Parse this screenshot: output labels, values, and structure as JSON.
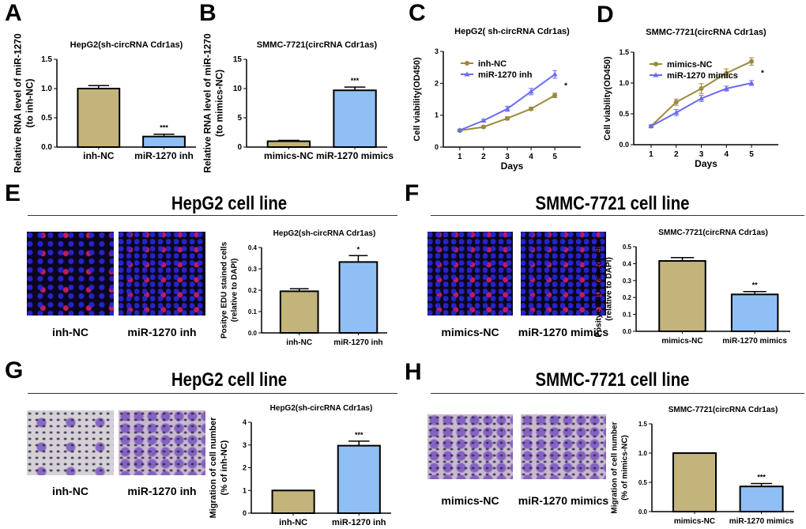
{
  "panels": {
    "A": "A",
    "B": "B",
    "C": "C",
    "D": "D",
    "E": "E",
    "F": "F",
    "G": "G",
    "H": "H"
  },
  "sections": {
    "E": "HepG2 cell line",
    "F": "SMMC-7721 cell line",
    "G": "HepG2 cell line",
    "H": "SMMC-7721 cell line"
  },
  "images": {
    "E": [
      "inh-NC",
      "miR-1270 inh"
    ],
    "F": [
      "mimics-NC",
      "miR-1270 mimics"
    ],
    "G": [
      "inh-NC",
      "miR-1270 inh"
    ],
    "H": [
      "mimics-NC",
      "miR-1270 mimics"
    ]
  },
  "colors": {
    "control": "#c2b47a",
    "treated": "#8fbff5",
    "line_control": "#9b8a3c",
    "line_treated": "#6b6cf5"
  },
  "chart_data": [
    {
      "id": "A",
      "type": "bar",
      "title": "HepG2(sh-circRNA Cdr1as)",
      "ylabel": [
        "Relative RNA level of miR-1270",
        "(to inh-NC)"
      ],
      "categories": [
        "inh-NC",
        "miR-1270 inh"
      ],
      "values": [
        1.0,
        0.18
      ],
      "errors": [
        0.05,
        0.04
      ],
      "significance": [
        "",
        "***"
      ],
      "ylim": [
        0,
        1.5
      ],
      "yticks": [
        0,
        0.5,
        1.0,
        1.5
      ],
      "yticklabels": [
        "0.0",
        "0.5",
        "1.0",
        "1.5"
      ]
    },
    {
      "id": "B",
      "type": "bar",
      "title": "SMMC-7721(circRNA Cdr1as)",
      "ylabel": [
        "Relative RNA level of miR-1270",
        "(to mimics-NC)"
      ],
      "categories": [
        "mimics-NC",
        "miR-1270 mimics"
      ],
      "values": [
        1.0,
        9.7
      ],
      "errors": [
        0.15,
        0.55
      ],
      "significance": [
        "",
        "***"
      ],
      "ylim": [
        0,
        15
      ],
      "yticks": [
        0,
        5,
        10,
        15
      ],
      "yticklabels": [
        "0",
        "5",
        "10",
        "15"
      ]
    },
    {
      "id": "C",
      "type": "line",
      "title": "HepG2( sh-circRNA Cdr1as)",
      "xlabel": "Days",
      "ylabel": [
        "Cell viability(OD450)"
      ],
      "x": [
        1,
        2,
        3,
        4,
        5
      ],
      "xticklabels": [
        "1",
        "2",
        "3",
        "4",
        "5"
      ],
      "series": [
        {
          "name": "inh-NC",
          "values": [
            0.52,
            0.63,
            0.9,
            1.2,
            1.62
          ],
          "errors": [
            0.03,
            0.03,
            0.05,
            0.05,
            0.07
          ]
        },
        {
          "name": "miR-1270 inh",
          "values": [
            0.53,
            0.83,
            1.2,
            1.74,
            2.28
          ],
          "errors": [
            0.03,
            0.04,
            0.08,
            0.1,
            0.12
          ]
        }
      ],
      "annotation": "*",
      "ylim": [
        0,
        3
      ],
      "yticks": [
        0,
        1,
        2,
        3
      ],
      "yticklabels": [
        "0",
        "1",
        "2",
        "3"
      ],
      "legend": "top-left"
    },
    {
      "id": "D",
      "type": "line",
      "title": "SMMC-7721(circRNA Cdr1as)",
      "xlabel": "Days",
      "ylabel": [
        "Cell viability(OD450)"
      ],
      "x": [
        1,
        2,
        3,
        4,
        5
      ],
      "xticklabels": [
        "1",
        "2",
        "3",
        "4",
        "5"
      ],
      "series": [
        {
          "name": "mimics-NC",
          "values": [
            0.3,
            0.69,
            0.91,
            1.16,
            1.35
          ],
          "errors": [
            0.02,
            0.05,
            0.08,
            0.07,
            0.06
          ]
        },
        {
          "name": "miR-1270 mimics",
          "values": [
            0.3,
            0.52,
            0.75,
            0.91,
            1.0
          ],
          "errors": [
            0.02,
            0.05,
            0.05,
            0.04,
            0.04
          ]
        }
      ],
      "annotation": "*",
      "ylim": [
        0,
        1.5
      ],
      "yticks": [
        0,
        0.5,
        1.0,
        1.5
      ],
      "yticklabels": [
        "0.0",
        "0.5",
        "1.0",
        "1.5"
      ],
      "legend": "top-left"
    },
    {
      "id": "E",
      "type": "bar",
      "title": "HepG2(sh-circRNA Cdr1as)",
      "ylabel": [
        "Positye EDU stained cells",
        "(relative to DAPI)"
      ],
      "categories": [
        "inh-NC",
        "miR-1270 inh"
      ],
      "values": [
        0.195,
        0.332
      ],
      "errors": [
        0.012,
        0.03
      ],
      "significance": [
        "",
        "*"
      ],
      "ylim": [
        0,
        0.4
      ],
      "yticks": [
        0,
        0.1,
        0.2,
        0.3,
        0.4
      ],
      "yticklabels": [
        "0.0",
        "0.1",
        "0.2",
        "0.3",
        "0.4"
      ]
    },
    {
      "id": "F",
      "type": "bar",
      "title": "SMMC-7721(circRNA Cdr1as)",
      "ylabel": [
        "Positye EDU stained cells",
        "(relative to DAPI)"
      ],
      "categories": [
        "mimics-NC",
        "miR-1270 mimics"
      ],
      "values": [
        0.416,
        0.218
      ],
      "errors": [
        0.02,
        0.017
      ],
      "significance": [
        "",
        "**"
      ],
      "ylim": [
        0,
        0.5
      ],
      "yticks": [
        0,
        0.1,
        0.2,
        0.3,
        0.4,
        0.5
      ],
      "yticklabels": [
        "0.0",
        "0.1",
        "0.2",
        "0.3",
        "0.4",
        "0.5"
      ]
    },
    {
      "id": "G",
      "type": "bar",
      "title": "HepG2(sh-circRNA Cdr1as)",
      "ylabel": [
        "Migration of cell number",
        "(% of inh-NC)"
      ],
      "categories": [
        "inh-NC",
        "miR-1270 inh"
      ],
      "values": [
        1.0,
        2.97
      ],
      "errors": [
        0,
        0.2
      ],
      "significance": [
        "",
        "***"
      ],
      "ylim": [
        0,
        4
      ],
      "yticks": [
        0,
        1,
        2,
        3,
        4
      ],
      "yticklabels": [
        "0",
        "1",
        "2",
        "3",
        "4"
      ]
    },
    {
      "id": "H",
      "type": "bar",
      "title": "SMMC-7721(circRNA Cdr1as)",
      "ylabel": [
        "Migration of cell number",
        "(% of mimics-NC)"
      ],
      "categories": [
        "mimics-NC",
        "miR-1270 mimics"
      ],
      "values": [
        1.0,
        0.43
      ],
      "errors": [
        0,
        0.05
      ],
      "significance": [
        "",
        "***"
      ],
      "ylim": [
        0,
        1.5
      ],
      "yticks": [
        0,
        0.5,
        1.0,
        1.5
      ],
      "yticklabels": [
        "0.0",
        "0.5",
        "1.0",
        "1.5"
      ]
    }
  ]
}
